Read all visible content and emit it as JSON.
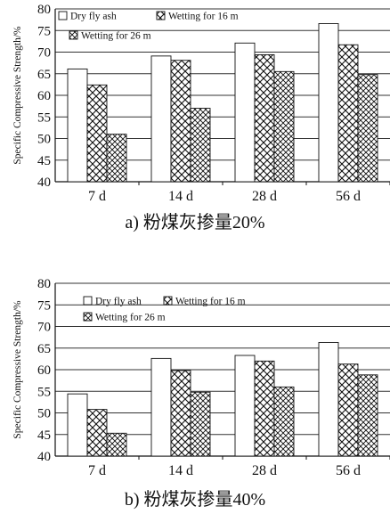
{
  "chart_data": [
    {
      "type": "bar",
      "panel": "a",
      "caption": "a) 粉煤灰掺量20%",
      "ylabel": "Specific Compressive Strength/%",
      "xlabel": "",
      "ylim": [
        40,
        80
      ],
      "yticks": [
        40,
        45,
        50,
        55,
        60,
        65,
        70,
        75,
        80
      ],
      "grid": true,
      "legend_position": "top-left",
      "categories": [
        "7 d",
        "14 d",
        "28 d",
        "56 d"
      ],
      "series": [
        {
          "name": "Dry fly ash",
          "pattern": "plain",
          "values": [
            66.1,
            69.1,
            72.1,
            76.6
          ]
        },
        {
          "name": "Wetting for 16 m",
          "pattern": "diagonal",
          "values": [
            62.4,
            68.1,
            69.4,
            71.7
          ]
        },
        {
          "name": "Wetting for 26 m",
          "pattern": "crosshatch",
          "values": [
            51.0,
            57.0,
            65.5,
            64.8
          ]
        }
      ]
    },
    {
      "type": "bar",
      "panel": "b",
      "caption": "b) 粉煤灰掺量40%",
      "ylabel": "Specific Compressive Strength/%",
      "xlabel": "",
      "ylim": [
        40,
        80
      ],
      "yticks": [
        40,
        45,
        50,
        55,
        60,
        65,
        70,
        75,
        80
      ],
      "grid": true,
      "legend_position": "top-left",
      "categories": [
        "7 d",
        "14 d",
        "28 d",
        "56 d"
      ],
      "series": [
        {
          "name": "Dry fly ash",
          "pattern": "plain",
          "values": [
            54.4,
            62.6,
            63.3,
            66.3
          ]
        },
        {
          "name": "Wetting for 16 m",
          "pattern": "diagonal",
          "values": [
            50.8,
            59.8,
            62.0,
            61.3
          ]
        },
        {
          "name": "Wetting for 26 m",
          "pattern": "crosshatch",
          "values": [
            45.3,
            54.8,
            56.0,
            58.8
          ]
        }
      ]
    }
  ]
}
